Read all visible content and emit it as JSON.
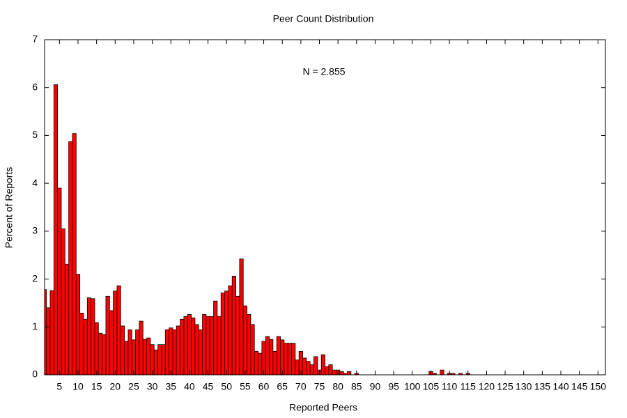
{
  "chart_data": {
    "type": "bar",
    "title": "Peer Count Distribution",
    "x_label": "Reported Peers",
    "y_label": "Percent of Reports",
    "annotation": "N = 2.855",
    "x": [
      1,
      2,
      3,
      4,
      5,
      6,
      7,
      8,
      9,
      10,
      11,
      12,
      13,
      14,
      15,
      16,
      17,
      18,
      19,
      20,
      21,
      22,
      23,
      24,
      25,
      26,
      27,
      28,
      29,
      30,
      31,
      32,
      33,
      34,
      35,
      36,
      37,
      38,
      39,
      40,
      41,
      42,
      43,
      44,
      45,
      46,
      47,
      48,
      49,
      50,
      51,
      52,
      53,
      54,
      55,
      56,
      57,
      58,
      59,
      60,
      61,
      62,
      63,
      64,
      65,
      66,
      67,
      68,
      69,
      70,
      71,
      72,
      73,
      74,
      75,
      76,
      77,
      78,
      79,
      80,
      81,
      82,
      83,
      84,
      85,
      86,
      87,
      88,
      89,
      90,
      91,
      92,
      93,
      94,
      95,
      96,
      97,
      98,
      99,
      100,
      101,
      102,
      103,
      104,
      105,
      106,
      107,
      108,
      109,
      110,
      111,
      112,
      113,
      114,
      115
    ],
    "values": [
      1.78,
      1.4,
      1.76,
      6.06,
      3.9,
      3.05,
      2.31,
      4.87,
      5.04,
      2.1,
      1.29,
      1.16,
      1.61,
      1.59,
      1.09,
      0.87,
      0.84,
      1.64,
      1.34,
      1.75,
      1.86,
      1.02,
      0.7,
      0.94,
      0.73,
      0.94,
      1.12,
      0.74,
      0.77,
      0.63,
      0.52,
      0.63,
      0.63,
      0.94,
      0.98,
      0.94,
      1.02,
      1.16,
      1.22,
      1.26,
      1.19,
      1.05,
      0.94,
      1.26,
      1.22,
      1.22,
      1.54,
      1.22,
      1.71,
      1.75,
      1.86,
      2.06,
      1.64,
      2.42,
      1.44,
      1.26,
      1.05,
      0.49,
      0.45,
      0.7,
      0.8,
      0.74,
      0.49,
      0.8,
      0.73,
      0.66,
      0.66,
      0.66,
      0.31,
      0.49,
      0.35,
      0.28,
      0.21,
      0.38,
      0.1,
      0.42,
      0.17,
      0.21,
      0.1,
      0.1,
      0.07,
      0.03,
      0.07,
      0,
      0.03,
      0,
      0,
      0,
      0,
      0,
      0,
      0,
      0,
      0,
      0,
      0,
      0,
      0,
      0,
      0,
      0,
      0,
      0,
      0,
      0.07,
      0.03,
      0,
      0.1,
      0,
      0.03,
      0.03,
      0,
      0.03,
      0,
      0.03
    ],
    "color": "#ff0000",
    "xlim": [
      1,
      152
    ],
    "xticks": [
      5,
      10,
      15,
      20,
      25,
      30,
      35,
      40,
      45,
      50,
      55,
      60,
      65,
      70,
      75,
      80,
      85,
      90,
      95,
      100,
      105,
      110,
      115,
      120,
      125,
      130,
      135,
      140,
      145,
      150
    ],
    "ylim": [
      0,
      7
    ],
    "yticks": [
      0,
      1,
      2,
      3,
      4,
      5,
      6,
      7
    ],
    "grid": false
  }
}
